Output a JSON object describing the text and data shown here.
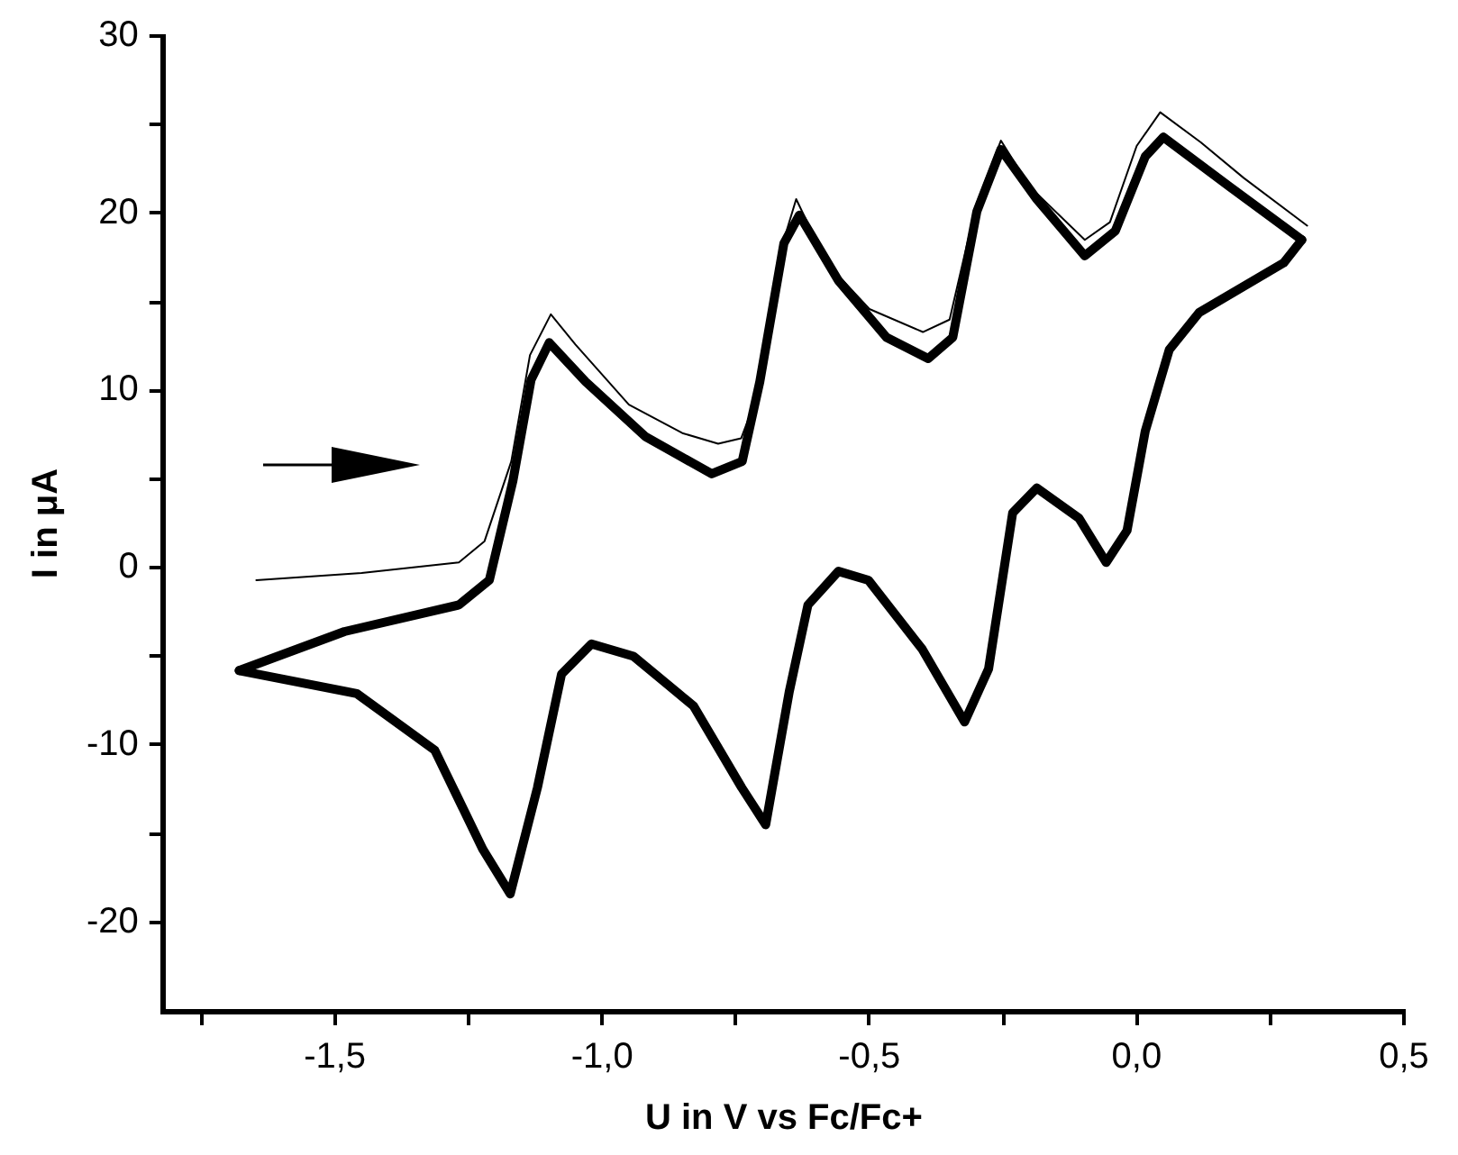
{
  "chart_data": {
    "type": "line",
    "xlabel": "U in V vs Fc/Fc+",
    "ylabel": "I in μA",
    "xlim": [
      -1.82,
      0.5
    ],
    "ylim": [
      -25,
      30
    ],
    "xticks": [
      {
        "value": -1.75,
        "label": null
      },
      {
        "value": -1.5,
        "label": "-1,5"
      },
      {
        "value": -1.25,
        "label": null
      },
      {
        "value": -1.0,
        "label": "-1,0"
      },
      {
        "value": -0.75,
        "label": null
      },
      {
        "value": -0.5,
        "label": "-0,5"
      },
      {
        "value": -0.25,
        "label": null
      },
      {
        "value": 0,
        "label": "0,0"
      },
      {
        "value": 0.25,
        "label": null
      },
      {
        "value": 0.5,
        "label": "0,5"
      }
    ],
    "yticks": [
      -20,
      {
        "value": -15,
        "label": null
      },
      -10,
      {
        "value": -5,
        "label": null
      },
      0,
      {
        "value": 5,
        "label": null
      },
      10,
      {
        "value": 15,
        "label": null
      },
      20,
      {
        "value": 25,
        "label": null
      },
      30
    ],
    "grid": false,
    "legend": false,
    "marker": "none",
    "line_style": "solid",
    "series": [
      {
        "color": "#000000",
        "x": [
          -1.647,
          -1.45,
          -1.268,
          -1.22,
          -1.17,
          -1.135,
          -1.096,
          -1.05,
          -0.95,
          -0.85,
          -0.783,
          -0.74,
          -0.7,
          -0.66,
          -0.637,
          -0.58,
          -0.5,
          -0.4,
          -0.35,
          -0.3,
          -0.254,
          -0.2,
          -0.097,
          -0.05,
          0.0,
          0.044,
          0.12,
          0.2,
          0.319
        ],
        "values": [
          -0.7,
          -0.3,
          0.3,
          1.5,
          6.0,
          12.0,
          14.3,
          12.6,
          9.2,
          7.6,
          7.0,
          7.3,
          10.5,
          18.5,
          20.8,
          17.2,
          14.6,
          13.3,
          14.0,
          20.5,
          24.1,
          21.5,
          18.5,
          19.5,
          23.8,
          25.7,
          24.0,
          22.0,
          19.3
        ]
      },
      {
        "color": "#000000",
        "x": [
          -1.679,
          -1.482,
          -1.268,
          -1.211,
          -1.167,
          -1.133,
          -1.099,
          -1.031,
          -0.919,
          -0.795,
          -0.738,
          -0.705,
          -0.66,
          -0.631,
          -0.558,
          -0.468,
          -0.39,
          -0.344,
          -0.299,
          -0.254,
          -0.187,
          -0.097,
          -0.04,
          0.016,
          0.05,
          0.174,
          0.309
        ],
        "values": [
          -5.8,
          -3.6,
          -2.1,
          -0.7,
          4.9,
          10.6,
          12.7,
          10.5,
          7.4,
          5.3,
          6.0,
          10.5,
          18.3,
          19.9,
          16.2,
          13.0,
          11.8,
          13.0,
          20.1,
          23.6,
          20.8,
          17.6,
          19.0,
          23.2,
          24.3,
          21.5,
          18.5
        ]
      },
      {
        "color": "#000000",
        "x": [
          0.309,
          0.275,
          0.117,
          0.061,
          0.016,
          -0.018,
          -0.057,
          -0.108,
          -0.187,
          -0.232,
          -0.277,
          -0.322,
          -0.401,
          -0.502,
          -0.558,
          -0.615,
          -0.65,
          -0.694,
          -0.739,
          -0.829,
          -0.941,
          -1.02,
          -1.076,
          -1.121,
          -1.172,
          -1.223,
          -1.313,
          -1.459,
          -1.679
        ],
        "values": [
          18.5,
          17.2,
          14.4,
          12.3,
          7.7,
          2.1,
          0.3,
          2.8,
          4.5,
          3.1,
          -5.7,
          -8.7,
          -4.6,
          -0.7,
          -0.2,
          -2.1,
          -7.0,
          -14.5,
          -12.4,
          -7.8,
          -5.0,
          -4.3,
          -6.0,
          -12.4,
          -18.4,
          -15.9,
          -10.3,
          -7.1,
          -5.8
        ]
      }
    ]
  }
}
